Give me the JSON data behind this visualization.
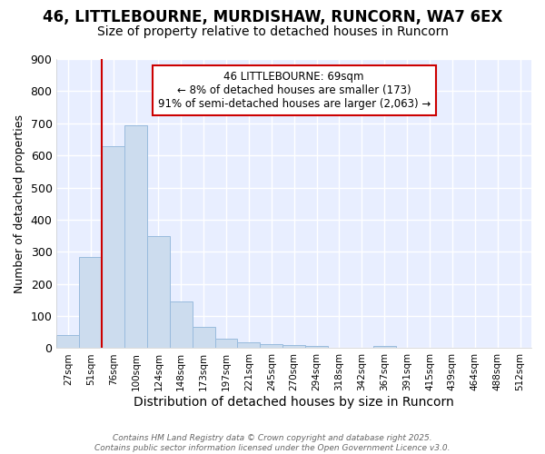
{
  "title_line1": "46, LITTLEBOURNE, MURDISHAW, RUNCORN, WA7 6EX",
  "title_line2": "Size of property relative to detached houses in Runcorn",
  "xlabel": "Distribution of detached houses by size in Runcorn",
  "ylabel": "Number of detached properties",
  "categories": [
    "27sqm",
    "51sqm",
    "76sqm",
    "100sqm",
    "124sqm",
    "148sqm",
    "173sqm",
    "197sqm",
    "221sqm",
    "245sqm",
    "270sqm",
    "294sqm",
    "318sqm",
    "342sqm",
    "367sqm",
    "391sqm",
    "415sqm",
    "439sqm",
    "464sqm",
    "488sqm",
    "512sqm"
  ],
  "values": [
    40,
    283,
    630,
    695,
    350,
    145,
    65,
    30,
    18,
    12,
    10,
    8,
    0,
    0,
    8,
    0,
    0,
    0,
    0,
    0,
    0
  ],
  "bar_color": "#ccdcee",
  "bar_edge_color": "#99bbdd",
  "ylim": [
    0,
    900
  ],
  "yticks": [
    0,
    100,
    200,
    300,
    400,
    500,
    600,
    700,
    800,
    900
  ],
  "vline_x": 1.5,
  "vline_color": "#cc0000",
  "annotation_text": "46 LITTLEBOURNE: 69sqm\n← 8% of detached houses are smaller (173)\n91% of semi-detached houses are larger (2,063) →",
  "annotation_fontsize": 8.5,
  "annotation_box_color": "#ffffff",
  "annotation_box_edgecolor": "#cc0000",
  "footer_text": "Contains HM Land Registry data © Crown copyright and database right 2025.\nContains public sector information licensed under the Open Government Licence v3.0.",
  "bg_color": "#ffffff",
  "plot_bg_color": "#e8eeff",
  "grid_color": "#ffffff",
  "title_fontsize": 12,
  "subtitle_fontsize": 10,
  "ylabel_fontsize": 9,
  "xlabel_fontsize": 10
}
